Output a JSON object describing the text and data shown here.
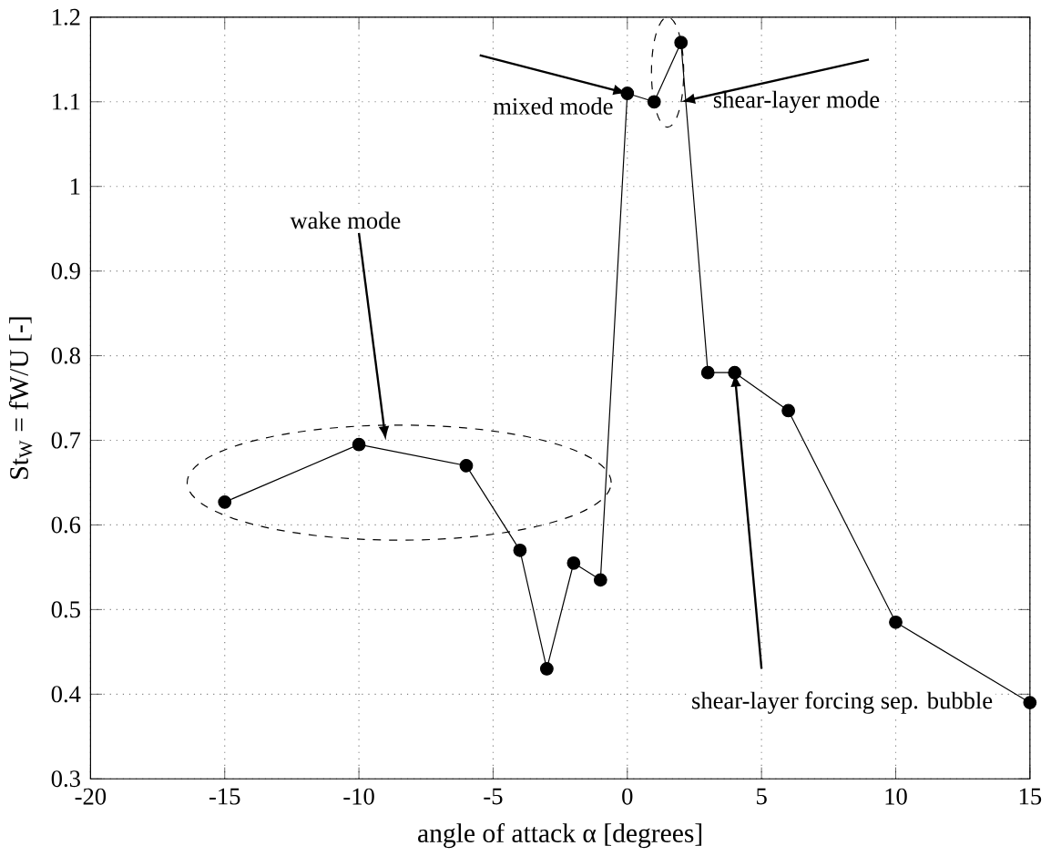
{
  "chart_data": {
    "type": "line",
    "xlabel": "angle of attack α [degrees]",
    "ylabel": "St$_{W}$ = fW/U [-]",
    "x": [
      -15,
      -10,
      -6,
      -4,
      -3,
      -2,
      -1,
      0,
      1,
      2,
      3,
      4,
      6,
      10,
      15
    ],
    "series": [
      {
        "color": "#000000",
        "values": [
          0.627,
          0.695,
          0.67,
          0.57,
          0.43,
          0.555,
          0.535,
          1.11,
          1.1,
          1.17,
          0.78,
          0.78,
          0.735,
          0.485,
          0.39
        ]
      }
    ],
    "xlim": [
      -20,
      15
    ],
    "xticks": [
      -20,
      -15,
      -10,
      -5,
      0,
      5,
      10,
      15
    ],
    "ylim": [
      0.3,
      1.2
    ],
    "yticks": [
      0.3,
      0.4,
      0.5,
      0.6,
      0.7,
      0.8,
      0.9,
      1,
      1.1,
      1.2
    ],
    "grid": true,
    "marker": "circle",
    "line_style": "solid",
    "annotations": [
      {
        "text": "mixed mode",
        "x": 0,
        "y": 1.11
      },
      {
        "text": "shear-layer mode",
        "x": 2,
        "y": 1.1
      },
      {
        "text": "wake mode",
        "x": -9,
        "y": 0.7
      },
      {
        "text": "shear-layer forcing sep. bubble",
        "x": 4,
        "y": 0.78
      }
    ]
  }
}
